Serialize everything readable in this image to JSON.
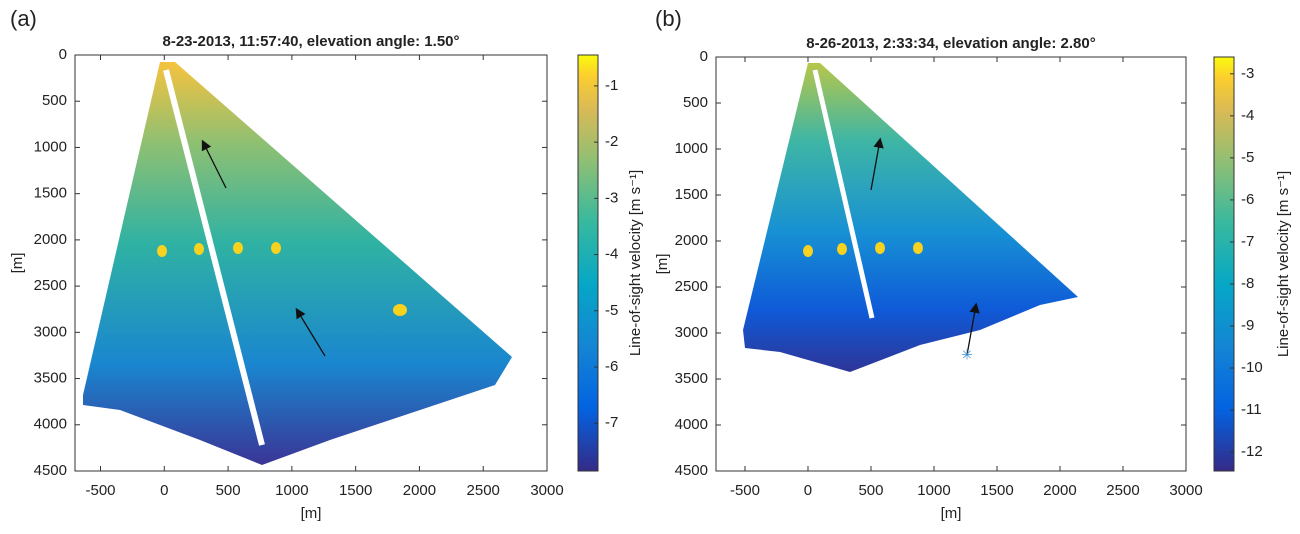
{
  "chart_data": [
    {
      "type": "heatmap",
      "panel_label": "(a)",
      "title": "8-23-2013, 11:57:40, elevation angle: 1.50°",
      "xlabel": "[m]",
      "ylabel": "[m]",
      "xlim": [
        -700,
        3000
      ],
      "xticks": [
        -500,
        0,
        500,
        1000,
        1500,
        2000,
        2500,
        3000
      ],
      "ylim": [
        0,
        4500
      ],
      "yticks": [
        0,
        500,
        1000,
        1500,
        2000,
        2500,
        3000,
        3500,
        4000,
        4500
      ],
      "y_reversed": true,
      "colorbar_label": "Line-of-sight velocity [m s⁻¹]",
      "clim": [
        -7.85,
        -0.45
      ],
      "cticks": [
        -1,
        -2,
        -3,
        -4,
        -5,
        -6,
        -7
      ]
    },
    {
      "type": "heatmap",
      "panel_label": "(b)",
      "title": "8-26-2013, 2:33:34, elevation angle: 2.80°",
      "xlabel": "[m]",
      "ylabel": "[m]",
      "xlim": [
        -730,
        3000
      ],
      "xticks": [
        -500,
        0,
        500,
        1000,
        1500,
        2000,
        2500,
        3000
      ],
      "ylim": [
        0,
        4500
      ],
      "yticks": [
        0,
        500,
        1000,
        1500,
        2000,
        2500,
        3000,
        3500,
        4000,
        4500
      ],
      "y_reversed": true,
      "colorbar_label": "Line-of-sight velocity [m s⁻¹]",
      "clim": [
        -12.45,
        -2.6
      ],
      "cticks": [
        -3,
        -4,
        -5,
        -6,
        -7,
        -8,
        -9,
        -10,
        -11,
        -12
      ]
    }
  ]
}
